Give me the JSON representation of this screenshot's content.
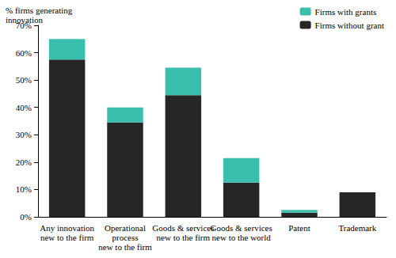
{
  "chart_data": {
    "type": "bar",
    "stacked": true,
    "y_label": "% firms generating\ninnovation",
    "categories": [
      "Any innovation\nnew to the firm",
      "Operational\nprocess\nnew to the firm",
      "Goods & services\nnew to the firm",
      "Goods & services\nnew to the world",
      "Patent",
      "Trademark"
    ],
    "series": [
      {
        "name": "Firms without grant",
        "color": "#262626",
        "values": [
          57.5,
          34.5,
          44.5,
          12.5,
          1.5,
          9
        ]
      },
      {
        "name": "Firms with grants",
        "color": "#3bbfad",
        "values": [
          7.5,
          5.5,
          10,
          9,
          1,
          0
        ]
      }
    ],
    "ylim": [
      0,
      70
    ],
    "yticks": [
      {
        "value": 0,
        "label": "0%"
      },
      {
        "value": 10,
        "label": "10%"
      },
      {
        "value": 20,
        "label": "20%"
      },
      {
        "value": 30,
        "label": "30%"
      },
      {
        "value": 40,
        "label": "40%"
      },
      {
        "value": 50,
        "label": "50%"
      },
      {
        "value": 60,
        "label": "60%"
      },
      {
        "value": 70,
        "label": "70%"
      }
    ],
    "grid": false,
    "legend": "upper right"
  }
}
